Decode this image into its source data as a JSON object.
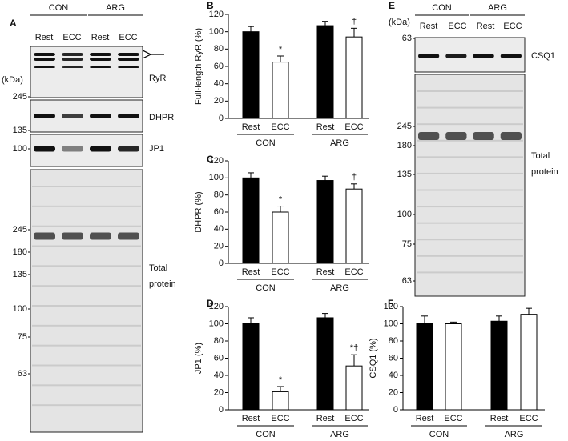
{
  "chart_data": [
    {
      "type": "bar",
      "panel": "B",
      "ylabel": "Full-length RyR (%)",
      "categories": [
        "Rest",
        "ECC",
        "Rest",
        "ECC"
      ],
      "groups": [
        "CON",
        "ARG"
      ],
      "series": [
        {
          "colors": [
            "#000000",
            "#ffffff",
            "#000000",
            "#ffffff"
          ],
          "values": [
            100,
            65,
            107,
            94
          ],
          "errors": [
            6,
            7,
            5,
            10
          ],
          "annotations": [
            null,
            "*",
            null,
            "†"
          ]
        }
      ],
      "ylim": [
        0,
        120
      ],
      "yticks": [
        0,
        20,
        40,
        60,
        80,
        100,
        120
      ]
    },
    {
      "type": "bar",
      "panel": "C",
      "ylabel": "DHPR (%)",
      "categories": [
        "Rest",
        "ECC",
        "Rest",
        "ECC"
      ],
      "groups": [
        "CON",
        "ARG"
      ],
      "series": [
        {
          "colors": [
            "#000000",
            "#ffffff",
            "#000000",
            "#ffffff"
          ],
          "values": [
            100,
            60,
            97,
            87
          ],
          "errors": [
            6,
            7,
            5,
            6
          ],
          "annotations": [
            null,
            "*",
            null,
            "†"
          ]
        }
      ],
      "ylim": [
        0,
        120
      ],
      "yticks": [
        0,
        20,
        40,
        60,
        80,
        100,
        120
      ]
    },
    {
      "type": "bar",
      "panel": "D",
      "ylabel": "JP1 (%)",
      "categories": [
        "Rest",
        "ECC",
        "Rest",
        "ECC"
      ],
      "groups": [
        "CON",
        "ARG"
      ],
      "series": [
        {
          "colors": [
            "#000000",
            "#ffffff",
            "#000000",
            "#ffffff"
          ],
          "values": [
            100,
            21,
            107,
            51
          ],
          "errors": [
            7,
            6,
            5,
            13
          ],
          "annotations": [
            null,
            "*",
            null,
            "*†"
          ]
        }
      ],
      "ylim": [
        0,
        120
      ],
      "yticks": [
        0,
        20,
        40,
        60,
        80,
        100,
        120
      ]
    },
    {
      "type": "bar",
      "panel": "F",
      "ylabel": "CSQ1 (%)",
      "categories": [
        "Rest",
        "ECC",
        "Rest",
        "ECC"
      ],
      "groups": [
        "CON",
        "ARG"
      ],
      "series": [
        {
          "colors": [
            "#000000",
            "#ffffff",
            "#000000",
            "#ffffff"
          ],
          "values": [
            100,
            100,
            103,
            111
          ],
          "errors": [
            9,
            2,
            6,
            7
          ],
          "annotations": [
            null,
            null,
            null,
            null
          ]
        }
      ],
      "ylim": [
        0,
        120
      ],
      "yticks": [
        0,
        20,
        40,
        60,
        80,
        100,
        120
      ]
    }
  ],
  "blots": [
    {
      "panel": "A",
      "groups": [
        "CON",
        "ARG"
      ],
      "lanes": [
        "Rest",
        "ECC",
        "Rest",
        "ECC"
      ],
      "unit": "(kDa)",
      "strips": [
        {
          "label": "RyR",
          "markers": [
            "245"
          ]
        },
        {
          "label": "DHPR",
          "markers": [
            "135"
          ]
        },
        {
          "label": "JP1",
          "markers": [
            "100"
          ]
        },
        {
          "label": "Total protein",
          "markers": [
            "245",
            "180",
            "135",
            "100",
            "75",
            "63"
          ]
        }
      ]
    },
    {
      "panel": "E",
      "groups": [
        "CON",
        "ARG"
      ],
      "lanes": [
        "Rest",
        "ECC",
        "Rest",
        "ECC"
      ],
      "unit": "(kDa)",
      "strips": [
        {
          "label": "CSQ1",
          "markers": [
            "63"
          ]
        },
        {
          "label": "Total protein",
          "markers": [
            "245",
            "180",
            "135",
            "100",
            "75",
            "63"
          ]
        }
      ]
    }
  ]
}
